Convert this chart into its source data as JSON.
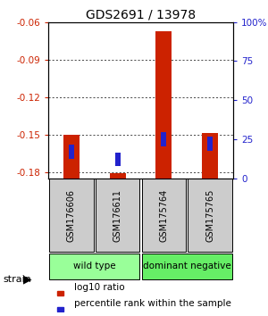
{
  "title": "GDS2691 / 13978",
  "samples": [
    "GSM176606",
    "GSM176611",
    "GSM175764",
    "GSM175765"
  ],
  "log10_ratio": [
    -0.15,
    -0.181,
    -0.067,
    -0.149
  ],
  "percentile_rank_pct": [
    17,
    12,
    25,
    22
  ],
  "ylim_left": [
    -0.185,
    -0.06
  ],
  "yticks_left": [
    -0.18,
    -0.15,
    -0.12,
    -0.09,
    -0.06
  ],
  "yticks_right": [
    0,
    25,
    50,
    75,
    100
  ],
  "bar_bottom": -0.185,
  "red_color": "#cc2200",
  "blue_color": "#2222cc",
  "red_bar_width": 0.35,
  "blue_bar_width": 0.12,
  "blue_bar_height": 0.011,
  "groups": [
    {
      "label": "wild type",
      "indices": [
        0,
        1
      ],
      "color": "#99ff99"
    },
    {
      "label": "dominant negative",
      "indices": [
        2,
        3
      ],
      "color": "#66ee66"
    }
  ],
  "group_label_prefix": "strain",
  "legend_red": "log10 ratio",
  "legend_blue": "percentile rank within the sample",
  "left_tick_color": "#cc2200",
  "right_tick_color": "#2222cc",
  "gray_color": "#cccccc",
  "dotted_color": "#555555"
}
